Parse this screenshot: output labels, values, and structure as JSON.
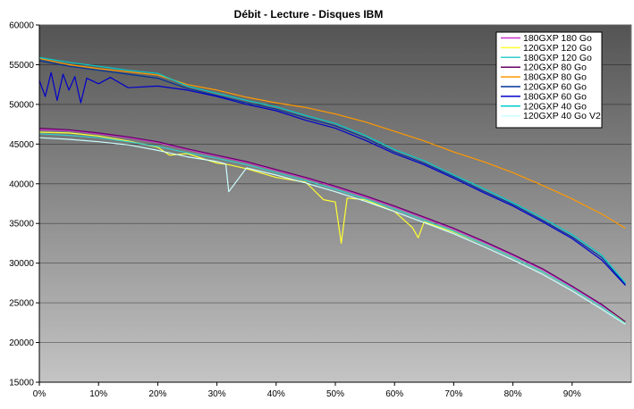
{
  "chart_data": {
    "type": "line",
    "title": "Débit - Lecture - Disques IBM",
    "xlabel": "",
    "ylabel": "",
    "xlim": [
      0,
      100
    ],
    "ylim": [
      15000,
      60000
    ],
    "x_ticks": [
      0,
      10,
      20,
      30,
      40,
      50,
      60,
      70,
      80,
      90
    ],
    "x_tick_labels": [
      "0%",
      "10%",
      "20%",
      "30%",
      "40%",
      "50%",
      "60%",
      "70%",
      "80%",
      "90%"
    ],
    "y_ticks": [
      15000,
      20000,
      25000,
      30000,
      35000,
      40000,
      45000,
      50000,
      55000,
      60000
    ],
    "y_tick_labels": [
      "15000",
      "20000",
      "25000",
      "30000",
      "35000",
      "40000",
      "45000",
      "50000",
      "55000",
      "60000"
    ],
    "grid": "horizontal",
    "legend": "top-right",
    "background": "gradient gray",
    "series": [
      {
        "name": "180GXP 180 Go",
        "color": "#cc33cc",
        "x": [
          0,
          5,
          10,
          15,
          20,
          25,
          30,
          35,
          40,
          45,
          50,
          55,
          60,
          65,
          70,
          75,
          80,
          85,
          90,
          95,
          99
        ],
        "y": [
          46800,
          46700,
          46300,
          45800,
          45200,
          44300,
          43500,
          42700,
          41700,
          40700,
          39600,
          38400,
          37100,
          35700,
          34300,
          32700,
          31000,
          29200,
          27000,
          24700,
          22600
        ]
      },
      {
        "name": "120GXP 120 Go",
        "color": "#ffff33",
        "x": [
          0,
          5,
          10,
          15,
          20,
          22,
          25,
          30,
          32,
          35,
          40,
          45,
          48,
          50,
          51,
          52,
          55,
          60,
          63,
          64,
          65,
          70,
          75,
          80,
          85,
          90,
          95,
          99
        ],
        "y": [
          46500,
          46400,
          46000,
          45400,
          44600,
          43600,
          43800,
          42600,
          42400,
          41900,
          40800,
          40200,
          38000,
          37700,
          32500,
          38200,
          38000,
          36500,
          34500,
          33200,
          35200,
          33900,
          32400,
          30700,
          28900,
          26800,
          24500,
          22500
        ]
      },
      {
        "name": "180GXP 120 Go",
        "color": "#33cccc",
        "x": [
          0,
          5,
          10,
          15,
          20,
          25,
          30,
          35,
          40,
          45,
          50,
          55,
          60,
          65,
          70,
          75,
          80,
          85,
          90,
          95,
          99
        ],
        "y": [
          46300,
          46100,
          45800,
          45300,
          44700,
          43900,
          43200,
          42400,
          41400,
          40400,
          39300,
          38100,
          36800,
          35400,
          34000,
          32400,
          30700,
          28900,
          26800,
          24500,
          22400
        ]
      },
      {
        "name": "120GXP 80 Go",
        "color": "#660066",
        "x": [
          0,
          5,
          10,
          15,
          20,
          25,
          30,
          35,
          40,
          45,
          50,
          55,
          60,
          65,
          70,
          75,
          80,
          85,
          90,
          95,
          99
        ],
        "y": [
          47000,
          46800,
          46400,
          45900,
          45300,
          44400,
          43600,
          42800,
          41800,
          40800,
          39700,
          38500,
          37200,
          35800,
          34400,
          32800,
          31100,
          29300,
          27100,
          24800,
          22600
        ]
      },
      {
        "name": "180GXP 80 Go",
        "color": "#ff9900",
        "x": [
          0,
          5,
          10,
          15,
          20,
          25,
          30,
          35,
          40,
          45,
          50,
          55,
          60,
          65,
          70,
          75,
          80,
          85,
          90,
          95,
          99
        ],
        "y": [
          55800,
          55000,
          54500,
          54100,
          53700,
          52500,
          51800,
          50900,
          50200,
          49600,
          48800,
          47800,
          46600,
          45400,
          44000,
          42800,
          41400,
          39800,
          38100,
          36200,
          34400
        ]
      },
      {
        "name": "120GXP 60 Go",
        "color": "#003399",
        "x": [
          0,
          5,
          10,
          15,
          20,
          25,
          30,
          35,
          40,
          45,
          50,
          55,
          60,
          65,
          70,
          75,
          80,
          85,
          90,
          95,
          99
        ],
        "y": [
          55500,
          54800,
          54300,
          53800,
          53300,
          52000,
          51100,
          50200,
          49400,
          48300,
          47300,
          45800,
          44000,
          42600,
          40900,
          39100,
          37400,
          35400,
          33300,
          30700,
          27300
        ]
      },
      {
        "name": "180GXP 60 Go",
        "color": "#0000cc",
        "x": [
          0,
          1,
          2,
          3,
          4,
          5,
          6,
          7,
          8,
          10,
          12,
          15,
          20,
          25,
          30,
          35,
          40,
          45,
          50,
          55,
          60,
          65,
          70,
          75,
          80,
          85,
          90,
          95,
          99
        ],
        "y": [
          53000,
          51000,
          54000,
          50500,
          53800,
          51800,
          53500,
          50200,
          53300,
          52600,
          53400,
          52100,
          52300,
          51800,
          51000,
          50000,
          49200,
          48000,
          47000,
          45500,
          43800,
          42400,
          40700,
          38900,
          37200,
          35200,
          33100,
          30400,
          27200
        ]
      },
      {
        "name": "120GXP 40 Go",
        "color": "#00cccc",
        "x": [
          0,
          5,
          10,
          15,
          20,
          25,
          30,
          35,
          40,
          45,
          50,
          55,
          60,
          65,
          70,
          75,
          80,
          85,
          90,
          95,
          99
        ],
        "y": [
          55900,
          55300,
          54800,
          54300,
          53900,
          52300,
          51400,
          50500,
          49700,
          48600,
          47600,
          46100,
          44300,
          42900,
          41100,
          39400,
          37600,
          35700,
          33600,
          31000,
          27500
        ]
      },
      {
        "name": "120GXP 40 Go V2",
        "color": "#ccffff",
        "x": [
          0,
          5,
          10,
          15,
          20,
          25,
          30,
          31.5,
          32,
          35,
          40,
          45,
          50,
          55,
          60,
          65,
          70,
          75,
          80,
          85,
          90,
          95,
          99
        ],
        "y": [
          45800,
          45600,
          45300,
          44900,
          44200,
          43400,
          42800,
          42500,
          39000,
          42000,
          41100,
          40100,
          39000,
          37800,
          36500,
          35100,
          33700,
          32100,
          30400,
          28600,
          26500,
          24200,
          22300
        ]
      }
    ]
  }
}
